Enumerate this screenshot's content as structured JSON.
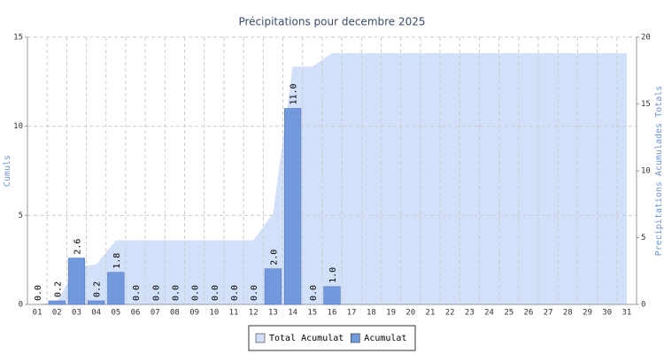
{
  "chart_data": {
    "type": "bar",
    "title": "Précipitations pour decembre 2025",
    "y_label": "Cumuls",
    "y2_label": "Precipitations Acumulades Totals",
    "categories": [
      "01",
      "02",
      "03",
      "04",
      "05",
      "06",
      "07",
      "08",
      "09",
      "10",
      "11",
      "12",
      "13",
      "14",
      "15",
      "16",
      "17",
      "18",
      "19",
      "20",
      "21",
      "22",
      "23",
      "24",
      "25",
      "26",
      "27",
      "28",
      "29",
      "30",
      "31"
    ],
    "series": [
      {
        "name": "Total Acumulat",
        "type": "area",
        "axis": "y2",
        "color": "#d3e0f9",
        "values": [
          0,
          0.2,
          2.8,
          3.0,
          4.8,
          4.8,
          4.8,
          4.8,
          4.8,
          4.8,
          4.8,
          4.8,
          6.8,
          17.8,
          17.8,
          18.8,
          18.8,
          18.8,
          18.8,
          18.8,
          18.8,
          18.8,
          18.8,
          18.8,
          18.8,
          18.8,
          18.8,
          18.8,
          18.8,
          18.8,
          18.8
        ]
      },
      {
        "name": "Acumulat",
        "type": "bar",
        "color": "#7399dd",
        "values": [
          0,
          0.2,
          2.6,
          0.2,
          1.8,
          0,
          0,
          0,
          0,
          0,
          0,
          0,
          2.0,
          11.0,
          0,
          1.0,
          null,
          null,
          null,
          null,
          null,
          null,
          null,
          null,
          null,
          null,
          null,
          null,
          null,
          null,
          null
        ],
        "value_labels": [
          "0.0",
          "0.2",
          "2.6",
          "0.2",
          "1.8",
          "0.0",
          "0.0",
          "0.0",
          "0.0",
          "0.0",
          "0.0",
          "0.0",
          "2.0",
          "11.0",
          "0.0",
          "1.0",
          null,
          null,
          null,
          null,
          null,
          null,
          null,
          null,
          null,
          null,
          null,
          null,
          null,
          null,
          null
        ]
      }
    ],
    "ylim": [
      0,
      15
    ],
    "yticks": [
      0,
      5,
      10,
      15
    ],
    "y2lim": [
      0,
      20
    ],
    "y2ticks": [
      0,
      5,
      10,
      15,
      20
    ],
    "grid": true,
    "legend": "bottom"
  }
}
